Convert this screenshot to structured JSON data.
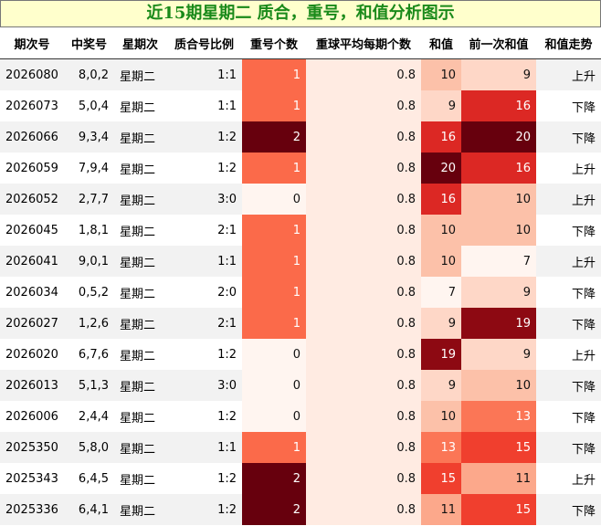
{
  "header": {
    "title": "近15期星期二 质合，重号，和值分析图示"
  },
  "table": {
    "columns": [
      "期次号",
      "中奖号",
      "星期次",
      "质合号比例",
      "重号个数",
      "重球平均每期个数",
      "和值",
      "前一次和值",
      "和值走势"
    ],
    "rows": [
      [
        2026080,
        "8,0,2",
        "星期二",
        "1:1",
        1,
        0.8,
        10,
        9,
        "上升"
      ],
      [
        2026073,
        "5,0,4",
        "星期二",
        "1:1",
        1,
        0.8,
        9,
        16,
        "下降"
      ],
      [
        2026066,
        "9,3,4",
        "星期二",
        "1:2",
        2,
        0.8,
        16,
        20,
        "下降"
      ],
      [
        2026059,
        "7,9,4",
        "星期二",
        "1:2",
        1,
        0.8,
        20,
        16,
        "上升"
      ],
      [
        2026052,
        "2,7,7",
        "星期二",
        "3:0",
        0,
        0.8,
        16,
        10,
        "上升"
      ],
      [
        2026045,
        "1,8,1",
        "星期二",
        "2:1",
        1,
        0.8,
        10,
        10,
        "下降"
      ],
      [
        2026041,
        "9,0,1",
        "星期二",
        "1:1",
        1,
        0.8,
        10,
        7,
        "上升"
      ],
      [
        2026034,
        "0,5,2",
        "星期二",
        "2:0",
        1,
        0.8,
        7,
        9,
        "下降"
      ],
      [
        2026027,
        "1,2,6",
        "星期二",
        "2:1",
        1,
        0.8,
        9,
        19,
        "下降"
      ],
      [
        2026020,
        "6,7,6",
        "星期二",
        "1:2",
        0,
        0.8,
        19,
        9,
        "上升"
      ],
      [
        2026013,
        "5,1,3",
        "星期二",
        "3:0",
        0,
        0.8,
        9,
        10,
        "下降"
      ],
      [
        2026006,
        "2,4,4",
        "星期二",
        "1:2",
        0,
        0.8,
        10,
        13,
        "下降"
      ],
      [
        2025350,
        "5,8,0",
        "星期二",
        "1:1",
        1,
        0.8,
        13,
        15,
        "下降"
      ],
      [
        2025343,
        "6,4,5",
        "星期二",
        "1:2",
        2,
        0.8,
        15,
        11,
        "上升"
      ],
      [
        2025336,
        "6,4,1",
        "星期二",
        "1:2",
        2,
        0.8,
        11,
        15,
        "下降"
      ]
    ]
  }
}
